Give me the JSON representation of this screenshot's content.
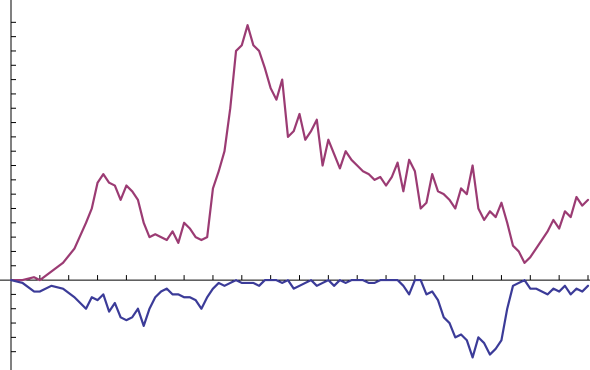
{
  "chart_data": {
    "type": "line",
    "title": "",
    "xlabel": "",
    "ylabel": "",
    "xlim": [
      0,
      1
    ],
    "ylim": [
      -0.3,
      0.95
    ],
    "grid": false,
    "legend": "none",
    "y_ticks": [
      -0.25,
      -0.2,
      -0.15,
      -0.1,
      -0.05,
      0.05,
      0.1,
      0.15,
      0.2,
      0.25,
      0.3,
      0.35,
      0.4,
      0.45,
      0.5,
      0.55,
      0.6,
      0.65,
      0.7,
      0.75,
      0.8,
      0.85,
      0.9
    ],
    "x_ticks": [
      0.05,
      0.1,
      0.15,
      0.2,
      0.25,
      0.3,
      0.35,
      0.4,
      0.45,
      0.5,
      0.55,
      0.6,
      0.65,
      0.7,
      0.75,
      0.8,
      0.85,
      0.9,
      0.95,
      1.0
    ],
    "series": [
      {
        "color": "#9b3b73",
        "x": [
          0.0,
          0.02,
          0.04,
          0.05,
          0.07,
          0.09,
          0.11,
          0.13,
          0.14,
          0.15,
          0.16,
          0.17,
          0.18,
          0.19,
          0.2,
          0.21,
          0.22,
          0.23,
          0.24,
          0.25,
          0.26,
          0.27,
          0.28,
          0.29,
          0.3,
          0.31,
          0.32,
          0.33,
          0.34,
          0.35,
          0.36,
          0.37,
          0.38,
          0.39,
          0.4,
          0.41,
          0.42,
          0.43,
          0.44,
          0.45,
          0.46,
          0.47,
          0.48,
          0.49,
          0.5,
          0.51,
          0.52,
          0.53,
          0.54,
          0.55,
          0.56,
          0.57,
          0.58,
          0.59,
          0.6,
          0.61,
          0.62,
          0.63,
          0.64,
          0.65,
          0.66,
          0.67,
          0.68,
          0.69,
          0.7,
          0.71,
          0.72,
          0.73,
          0.74,
          0.75,
          0.76,
          0.77,
          0.78,
          0.79,
          0.8,
          0.81,
          0.82,
          0.83,
          0.84,
          0.85,
          0.86,
          0.87,
          0.88,
          0.89,
          0.9,
          0.91,
          0.92,
          0.93,
          0.94,
          0.95,
          0.96,
          0.97,
          0.98,
          0.99,
          1.0
        ],
        "y": [
          0.0,
          0.0,
          0.01,
          0.0,
          0.03,
          0.06,
          0.11,
          0.2,
          0.25,
          0.34,
          0.37,
          0.34,
          0.33,
          0.28,
          0.33,
          0.31,
          0.28,
          0.2,
          0.15,
          0.16,
          0.15,
          0.14,
          0.17,
          0.13,
          0.2,
          0.18,
          0.15,
          0.14,
          0.15,
          0.32,
          0.38,
          0.45,
          0.6,
          0.8,
          0.82,
          0.89,
          0.82,
          0.8,
          0.74,
          0.67,
          0.63,
          0.7,
          0.5,
          0.52,
          0.58,
          0.49,
          0.52,
          0.56,
          0.4,
          0.49,
          0.44,
          0.39,
          0.45,
          0.42,
          0.4,
          0.38,
          0.37,
          0.35,
          0.36,
          0.33,
          0.36,
          0.41,
          0.31,
          0.42,
          0.38,
          0.25,
          0.27,
          0.37,
          0.31,
          0.3,
          0.28,
          0.25,
          0.32,
          0.3,
          0.4,
          0.25,
          0.21,
          0.24,
          0.22,
          0.27,
          0.2,
          0.12,
          0.1,
          0.06,
          0.08,
          0.11,
          0.14,
          0.17,
          0.21,
          0.18,
          0.24,
          0.22,
          0.29,
          0.26,
          0.28
        ]
      },
      {
        "color": "#3b3b98",
        "x": [
          0.0,
          0.02,
          0.04,
          0.05,
          0.07,
          0.09,
          0.11,
          0.13,
          0.14,
          0.15,
          0.16,
          0.17,
          0.18,
          0.19,
          0.2,
          0.21,
          0.22,
          0.23,
          0.24,
          0.25,
          0.26,
          0.27,
          0.28,
          0.29,
          0.3,
          0.31,
          0.32,
          0.33,
          0.34,
          0.35,
          0.36,
          0.37,
          0.38,
          0.39,
          0.4,
          0.41,
          0.42,
          0.43,
          0.44,
          0.45,
          0.46,
          0.47,
          0.48,
          0.49,
          0.5,
          0.51,
          0.52,
          0.53,
          0.54,
          0.55,
          0.56,
          0.57,
          0.58,
          0.59,
          0.6,
          0.61,
          0.62,
          0.63,
          0.64,
          0.65,
          0.66,
          0.67,
          0.68,
          0.69,
          0.7,
          0.71,
          0.72,
          0.73,
          0.74,
          0.75,
          0.76,
          0.77,
          0.78,
          0.79,
          0.8,
          0.81,
          0.82,
          0.83,
          0.84,
          0.85,
          0.86,
          0.87,
          0.88,
          0.89,
          0.9,
          0.91,
          0.92,
          0.93,
          0.94,
          0.95,
          0.96,
          0.97,
          0.98,
          0.99,
          1.0
        ],
        "y": [
          0.0,
          -0.01,
          -0.04,
          -0.04,
          -0.02,
          -0.03,
          -0.06,
          -0.1,
          -0.06,
          -0.07,
          -0.05,
          -0.11,
          -0.08,
          -0.13,
          -0.14,
          -0.13,
          -0.1,
          -0.16,
          -0.1,
          -0.06,
          -0.04,
          -0.03,
          -0.05,
          -0.05,
          -0.06,
          -0.06,
          -0.07,
          -0.1,
          -0.06,
          -0.03,
          -0.01,
          -0.02,
          -0.01,
          0.0,
          -0.01,
          -0.01,
          -0.01,
          -0.02,
          0.0,
          0.0,
          0.0,
          -0.01,
          0.0,
          -0.03,
          -0.02,
          -0.01,
          0.0,
          -0.02,
          -0.01,
          0.0,
          -0.02,
          0.0,
          -0.01,
          0.0,
          0.0,
          0.0,
          -0.01,
          -0.01,
          0.0,
          0.0,
          0.0,
          0.0,
          -0.02,
          -0.05,
          0.0,
          0.0,
          -0.05,
          -0.04,
          -0.07,
          -0.13,
          -0.15,
          -0.2,
          -0.19,
          -0.21,
          -0.27,
          -0.2,
          -0.22,
          -0.26,
          -0.24,
          -0.21,
          -0.1,
          -0.02,
          -0.01,
          0.0,
          -0.03,
          -0.03,
          -0.04,
          -0.05,
          -0.03,
          -0.04,
          -0.02,
          -0.05,
          -0.03,
          -0.04,
          -0.02
        ]
      }
    ]
  }
}
